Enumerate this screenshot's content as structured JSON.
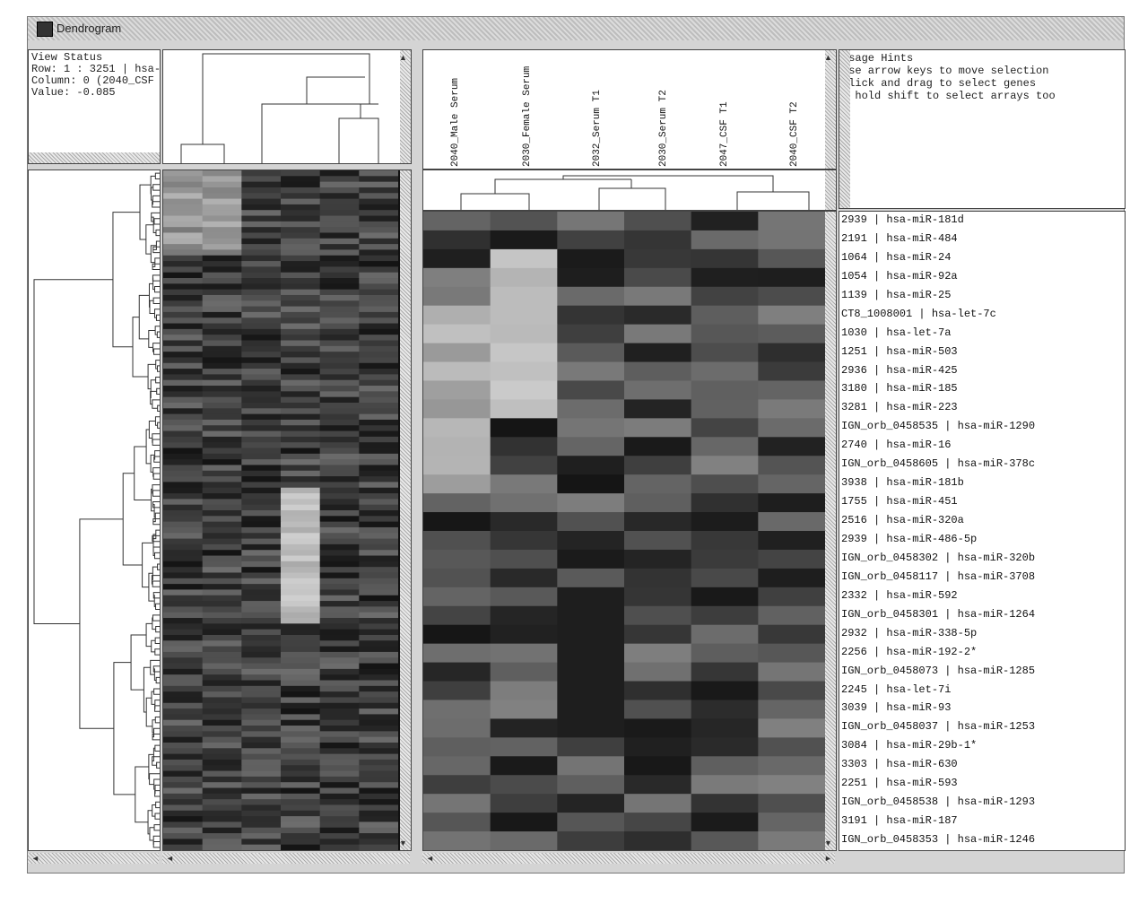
{
  "window": {
    "title": "Dendrogram"
  },
  "view_status": {
    "heading": "View Status",
    "row": "Row:  1 : 3251 | hsa-",
    "column": "Column: 0 (2040_CSF",
    "value": "Value: -0.085"
  },
  "usage_hints": {
    "heading": "Usage Hints",
    "lines": [
      "use arrow keys to move selection",
      "click and drag to select genes",
      "- hold shift to select arrays too"
    ]
  },
  "column_labels": [
    "2040_Male Serum",
    "2030_Female Serum",
    "2032_Serum T1",
    "2030_Serum T2",
    "2047_CSF T1",
    "2040_CSF T2"
  ],
  "row_labels": [
    "2939 | hsa-miR-181d",
    "2191 | hsa-miR-484",
    "1064 | hsa-miR-24",
    "1054 | hsa-miR-92a",
    "1139 | hsa-miR-25",
    "CT8_1008001 | hsa-let-7c",
    "1030 | hsa-let-7a",
    "1251 | hsa-miR-503",
    "2936 | hsa-miR-425",
    "3180 | hsa-miR-185",
    "3281 | hsa-miR-223",
    "IGN_orb_0458535 | hsa-miR-1290",
    "2740 | hsa-miR-16",
    "IGN_orb_0458605 | hsa-miR-378c",
    "3938 | hsa-miR-181b",
    "1755 | hsa-miR-451",
    "2516 | hsa-miR-320a",
    "2939 | hsa-miR-486-5p",
    "IGN_orb_0458302 | hsa-miR-320b",
    "IGN_orb_0458117 | hsa-miR-3708",
    "2332 | hsa-miR-592",
    "IGN_orb_0458301 | hsa-miR-1264",
    "2932 | hsa-miR-338-5p",
    "2256 | hsa-miR-192-2*",
    "IGN_orb_0458073 | hsa-miR-1285",
    "2245 | hsa-let-7i",
    "3039 | hsa-miR-93",
    "IGN_orb_0458037 | hsa-miR-1253",
    "3084 | hsa-miR-29b-1*",
    "3303 | hsa-miR-630",
    "2251 | hsa-miR-593",
    "IGN_orb_0458538 | hsa-miR-1293",
    "3191 | hsa-miR-187",
    "IGN_orb_0458353 | hsa-miR-1246"
  ],
  "scroll_arrows": {
    "up": "▲",
    "down": "▼",
    "left": "◄",
    "right": "►"
  },
  "icons": [
    "app-icon",
    "scroll-arrow-icons"
  ]
}
